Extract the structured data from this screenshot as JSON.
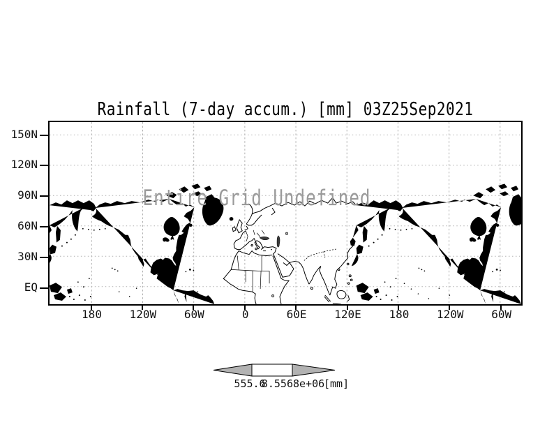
{
  "chart_data": {
    "type": "heatmap",
    "title": "Rainfall (7-day accum.) [mm] 03Z25Sep2021",
    "annotation": "Entire Grid Undefined",
    "x_ticks": [
      "180",
      "120W",
      "60W",
      "0",
      "60E",
      "120E",
      "180",
      "120W",
      "60W"
    ],
    "y_ticks": [
      "150N",
      "120N",
      "90N",
      "60N",
      "30N",
      "EQ"
    ],
    "values": [],
    "grid": true,
    "legend_position": "bottom",
    "colorbar": {
      "labels": [
        "555.6",
        "8.5568e+06",
        "[mm]"
      ],
      "arrow_fill": "#b2b2b2",
      "box_fill": "#ffffff"
    },
    "colors": {
      "coastline": "#000000",
      "gridline": "#b0b0b0",
      "annotation_text": "#9a9a9a",
      "frame": "#000000",
      "background": "#ffffff"
    }
  }
}
